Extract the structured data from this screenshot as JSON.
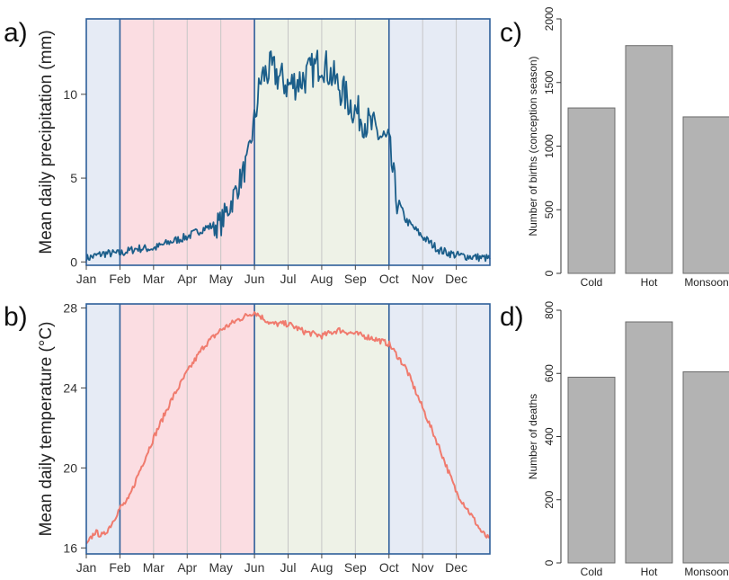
{
  "panels": {
    "a": {
      "letter": "a)"
    },
    "b": {
      "letter": "b)"
    },
    "c": {
      "letter": "c)"
    },
    "d": {
      "letter": "d)"
    }
  },
  "seasons": [
    {
      "name": "Cold",
      "color": "#e6ebf5",
      "months": [
        0,
        1
      ]
    },
    {
      "name": "Hot",
      "color": "#fbdde2",
      "months": [
        1,
        5
      ]
    },
    {
      "name": "Monsoon",
      "color": "#eef2e7",
      "months": [
        5,
        9
      ]
    },
    {
      "name": "Cold",
      "color": "#e6ebf5",
      "months": [
        9,
        12
      ]
    }
  ],
  "chart_data": [
    {
      "id": "a",
      "type": "line",
      "ylabel": "Mean daily precipitation (mm)",
      "xlabels": [
        "Jan",
        "Feb",
        "Mar",
        "Apr",
        "May",
        "Jun",
        "Jul",
        "Aug",
        "Sep",
        "Oct",
        "Nov",
        "Dec"
      ],
      "yticks": [
        0,
        5,
        10
      ],
      "ylim": [
        -0.2,
        14.5
      ],
      "line_color": "#1b5e8a",
      "x_month": [
        0,
        0.5,
        1,
        1.5,
        2,
        2.5,
        3,
        3.5,
        4,
        4.3,
        4.6,
        4.8,
        5,
        5.2,
        5.5,
        6,
        6.5,
        7,
        7.5,
        8,
        8.5,
        9,
        9.2,
        9.5,
        10,
        10.5,
        11,
        11.5,
        12
      ],
      "y": [
        0.2,
        0.5,
        0.5,
        0.8,
        0.8,
        1.2,
        1.5,
        2.0,
        2.3,
        3.5,
        5.0,
        6.0,
        8.5,
        11.0,
        11.5,
        10.5,
        11.0,
        12.0,
        10.5,
        9.0,
        8.0,
        7.0,
        4.0,
        2.5,
        1.5,
        0.7,
        0.4,
        0.3,
        0.2
      ]
    },
    {
      "id": "b",
      "type": "line",
      "ylabel": "Mean daily temperature (°C)",
      "xlabels": [
        "Jan",
        "Feb",
        "Mar",
        "Apr",
        "May",
        "Jun",
        "Jul",
        "Aug",
        "Sep",
        "Oct",
        "Nov",
        "Dec"
      ],
      "yticks": [
        16,
        20,
        24,
        28
      ],
      "ylim": [
        15.7,
        28.2
      ],
      "line_color": "#f07b6e",
      "x_month": [
        0,
        0.25,
        0.5,
        0.75,
        1,
        1.25,
        1.5,
        2,
        2.5,
        3,
        3.5,
        4,
        4.5,
        5,
        5.5,
        6,
        6.5,
        7,
        7.5,
        8,
        8.5,
        9,
        9.5,
        10,
        10.5,
        11,
        11.5,
        11.75,
        12
      ],
      "y": [
        16.1,
        16.8,
        16.6,
        17.2,
        18.0,
        18.4,
        19.5,
        21.5,
        23.3,
        24.8,
        26.1,
        26.9,
        27.4,
        27.8,
        27.2,
        27.2,
        26.8,
        26.6,
        26.9,
        26.7,
        26.5,
        26.2,
        25.0,
        23.0,
        21.0,
        18.8,
        17.5,
        16.8,
        16.4
      ]
    },
    {
      "id": "c",
      "type": "bar",
      "ylabel": "Number of births (conception season)",
      "categories": [
        "Cold",
        "Hot",
        "Monsoon"
      ],
      "values": [
        1300,
        1790,
        1230
      ],
      "yticks": [
        0,
        500,
        1000,
        1500,
        2000
      ],
      "ylim": [
        0,
        2000
      ],
      "bar_color": "#b3b3b3"
    },
    {
      "id": "d",
      "type": "bar",
      "ylabel": "Number of deaths",
      "categories": [
        "Cold",
        "Hot",
        "Monsoon"
      ],
      "values": [
        588,
        763,
        605
      ],
      "yticks": [
        0,
        200,
        400,
        600,
        800
      ],
      "ylim": [
        0,
        800
      ],
      "bar_color": "#b3b3b3"
    }
  ]
}
